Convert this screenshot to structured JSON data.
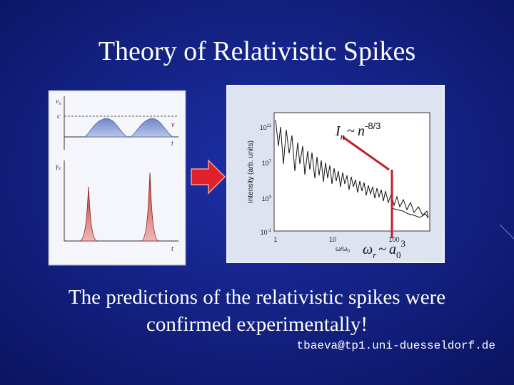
{
  "title": "Theory of Relativistic Spikes",
  "left_figure": {
    "top_axis": {
      "symbol": "v",
      "subscript": "x"
    },
    "level_label": "c",
    "top_curve_label": "v",
    "top_time_label": "t",
    "bottom_axis": {
      "symbol": "γ",
      "subscript": "x"
    },
    "bottom_time_label": "t"
  },
  "right_figure": {
    "y_axis_label": "Intensity (arb. units)",
    "y_ticks": [
      {
        "base": "10",
        "exponent": "11"
      },
      {
        "base": "10",
        "exponent": "7"
      },
      {
        "base": "10",
        "exponent": "3"
      },
      {
        "base": "10",
        "exponent": "-1"
      }
    ],
    "x_ticks": [
      "1",
      "10",
      "100"
    ],
    "x_axis_label": {
      "text": "ω/ω",
      "subscript": "0"
    },
    "annotation_top": {
      "symbol": "I",
      "subscript": "n",
      "relation": "~",
      "base": "n",
      "superscript": "-8/3"
    },
    "annotation_bottom": {
      "symbol": "ω",
      "subscript": "r",
      "relation": "~",
      "base": "a",
      "base_subscript": "0",
      "superscript": "3"
    }
  },
  "body": "The predictions of the relativistic spikes were confirmed experimentally!",
  "footer": "tbaeva@tp1.uni-duesseldorf.de"
}
